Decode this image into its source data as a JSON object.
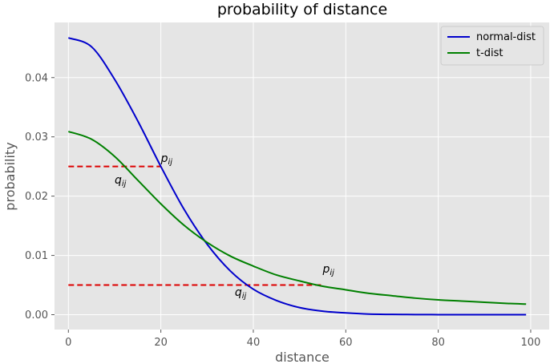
{
  "chart_data": {
    "type": "line",
    "title": "probability of distance",
    "xlabel": "distance",
    "ylabel": "probability",
    "xlim": [
      -3,
      104
    ],
    "ylim": [
      -0.0025,
      0.0493
    ],
    "xticks": [
      0,
      20,
      40,
      60,
      80,
      100
    ],
    "xtick_labels": [
      "0",
      "20",
      "40",
      "60",
      "80",
      "100"
    ],
    "yticks": [
      0.0,
      0.01,
      0.02,
      0.03,
      0.04
    ],
    "ytick_labels": [
      "0.00",
      "0.01",
      "0.02",
      "0.03",
      "0.04"
    ],
    "grid": true,
    "legend_position": "top-right",
    "series": [
      {
        "name": "normal-dist",
        "color": "#0000cc",
        "x": [
          0,
          5,
          10,
          15,
          20,
          25,
          30,
          35,
          40,
          45,
          50,
          55,
          60,
          65,
          70,
          75,
          80,
          85,
          90,
          95,
          99
        ],
        "values": [
          0.0467,
          0.0452,
          0.0397,
          0.0327,
          0.025,
          0.0178,
          0.0119,
          0.0074,
          0.0043,
          0.0024,
          0.0012,
          0.0006,
          0.0003,
          0.0001,
          5e-05,
          2e-05,
          1e-05,
          0.0,
          0.0,
          0.0,
          0.0
        ]
      },
      {
        "name": "t-dist",
        "color": "#008000",
        "x": [
          0,
          5,
          10,
          15,
          20,
          25,
          30,
          35,
          40,
          45,
          50,
          55,
          60,
          65,
          70,
          75,
          80,
          85,
          90,
          95,
          99
        ],
        "values": [
          0.0309,
          0.0296,
          0.0267,
          0.0227,
          0.0187,
          0.0151,
          0.0122,
          0.0099,
          0.0082,
          0.0067,
          0.0057,
          0.0048,
          0.0042,
          0.0036,
          0.0032,
          0.0028,
          0.0025,
          0.0023,
          0.0021,
          0.0019,
          0.0018
        ]
      }
    ],
    "reference_lines": [
      {
        "y": 0.025,
        "x_start": 0,
        "x_end": 20,
        "color": "#dd0000",
        "style": "dashed"
      },
      {
        "y": 0.005,
        "x_start": 0,
        "x_end": 55,
        "color": "#dd0000",
        "style": "dashed"
      }
    ],
    "annotations": [
      {
        "base": "p",
        "sub": "ij",
        "x": 20,
        "y": 0.0258
      },
      {
        "base": "q",
        "sub": "ij",
        "x": 10,
        "y": 0.0221
      },
      {
        "base": "p",
        "sub": "ij",
        "x": 55,
        "y": 0.0071
      },
      {
        "base": "q",
        "sub": "ij",
        "x": 36,
        "y": 0.0032
      }
    ]
  }
}
